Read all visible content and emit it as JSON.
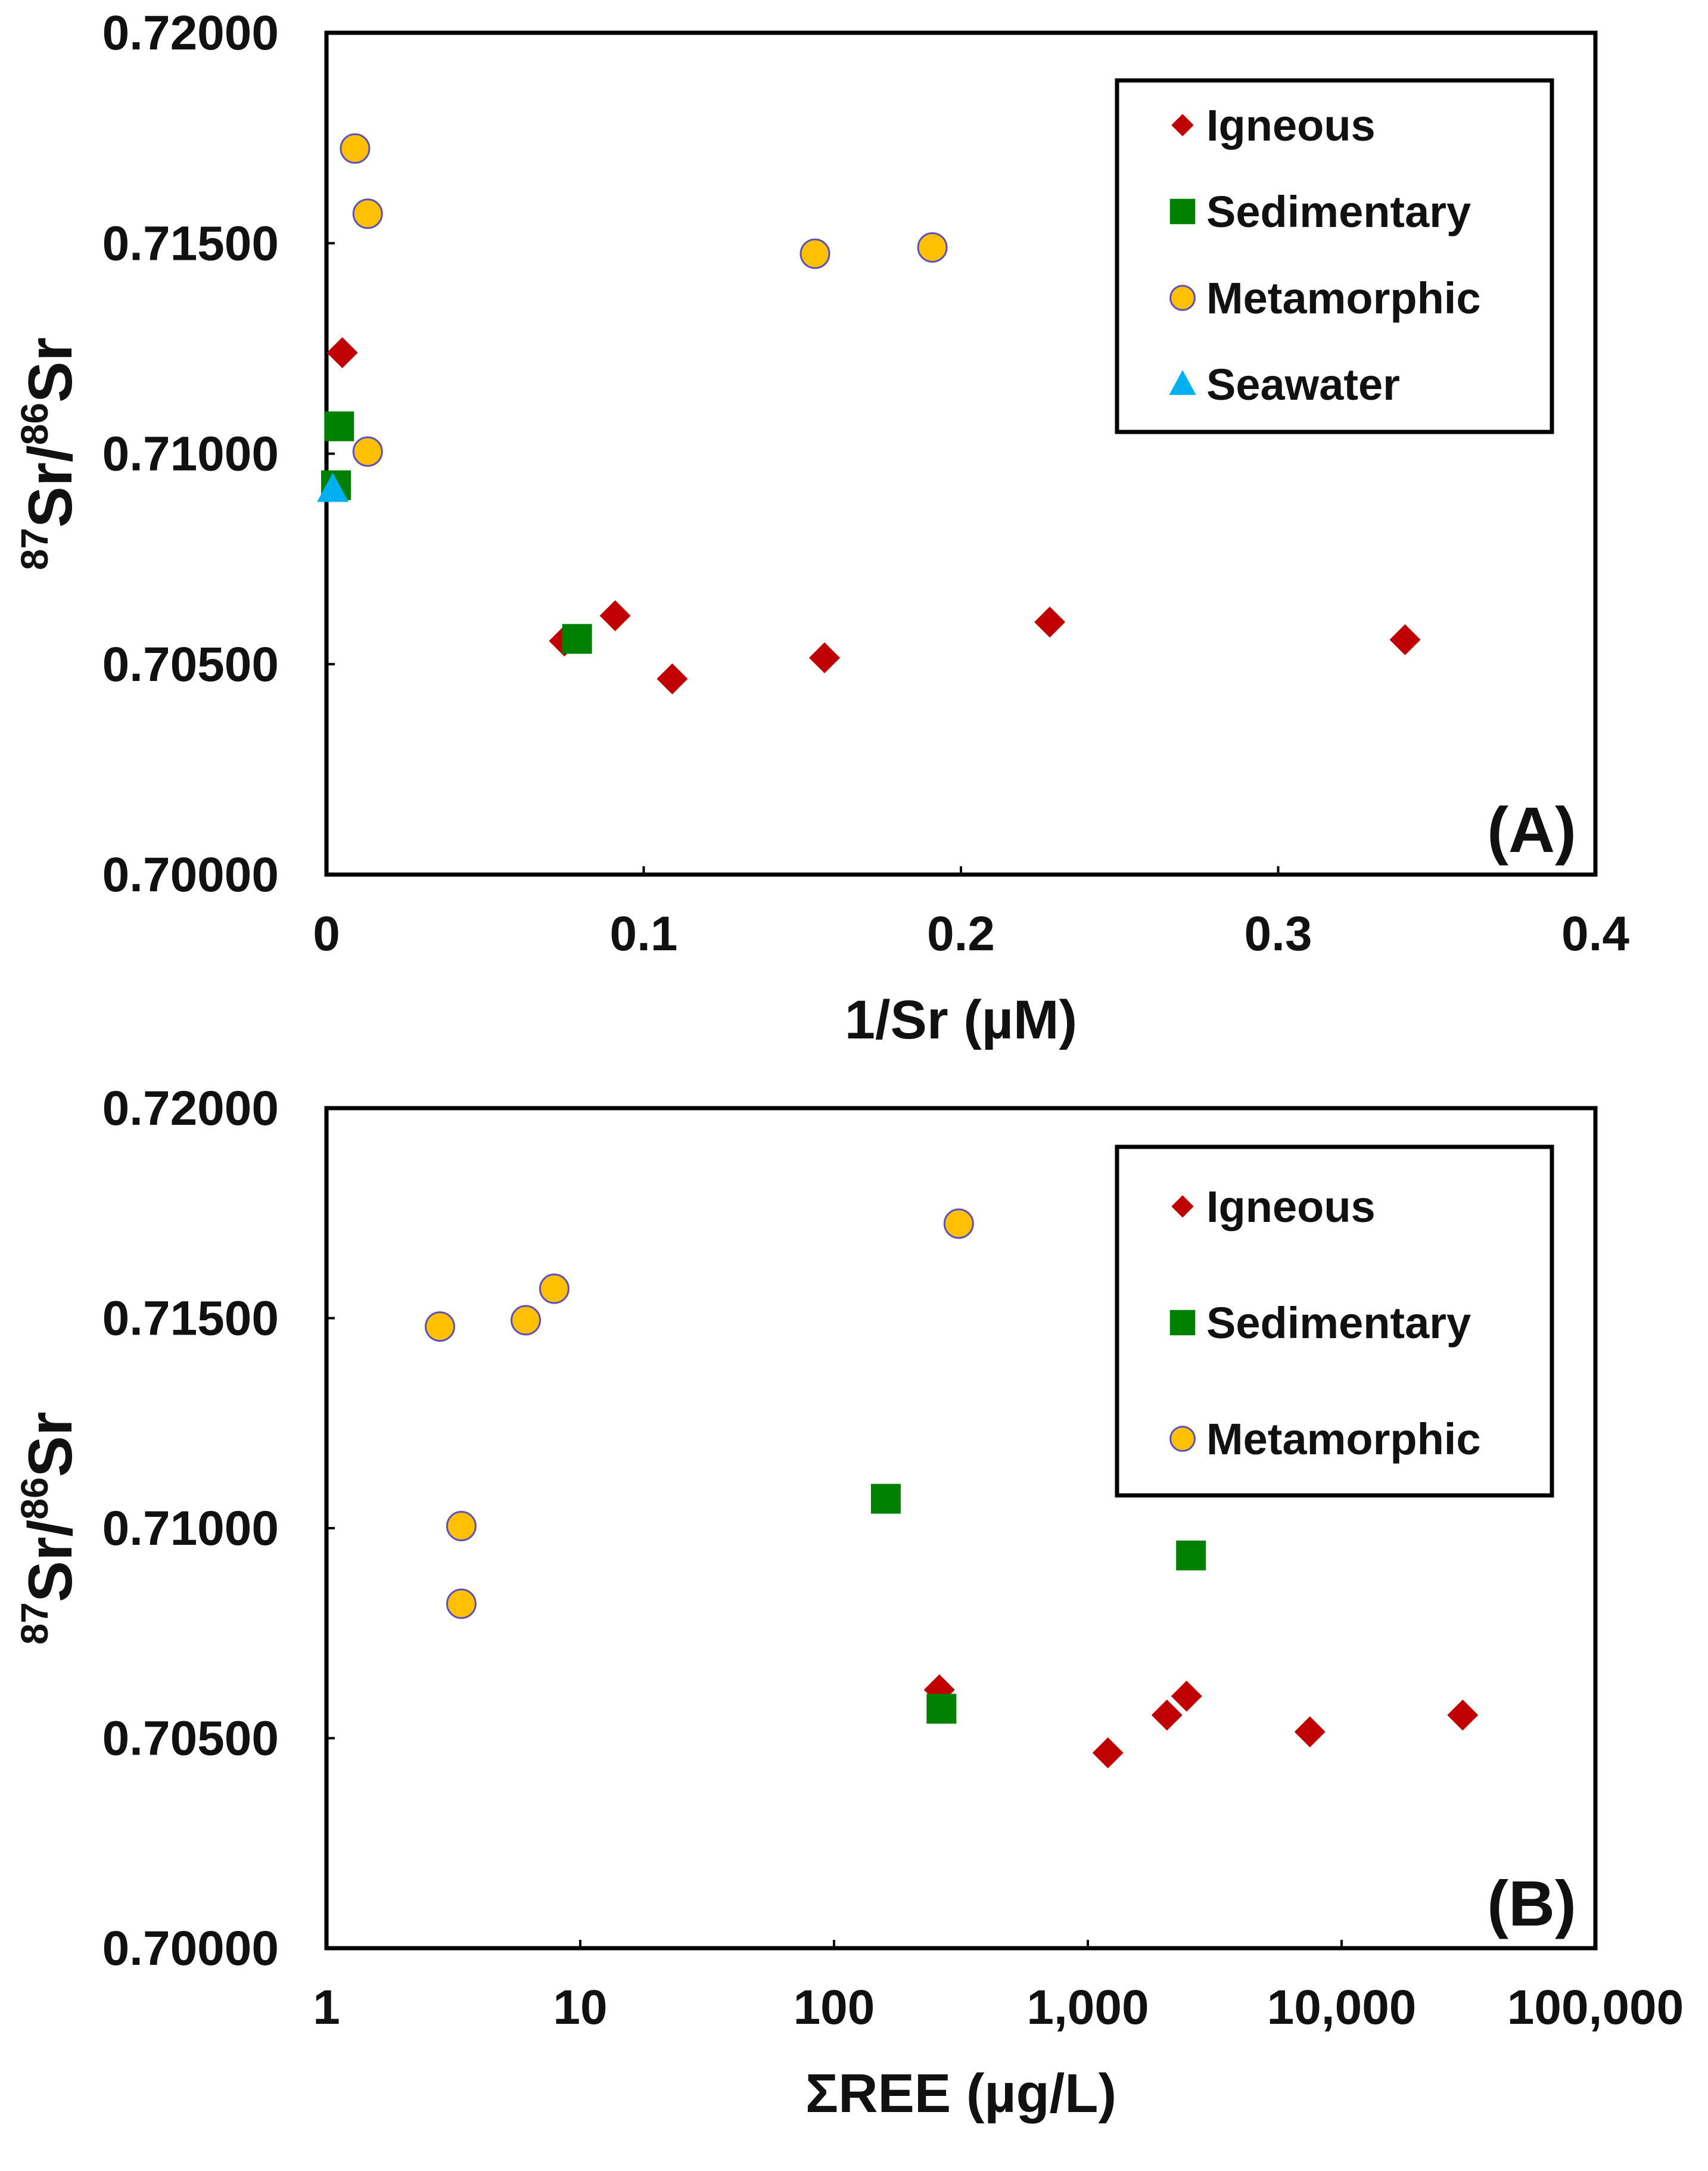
{
  "chart_data": [
    {
      "type": "scatter",
      "panel_label": "(A)",
      "xlabel": "1/Sr (µM)",
      "ylabel": {
        "prefix_sup": "87",
        "base1": "Sr/",
        "mid_sup": "86",
        "base2": "Sr"
      },
      "xscale": "linear",
      "xlim": [
        0,
        0.4
      ],
      "ylim": [
        0.7,
        0.72
      ],
      "xticks": [
        0,
        0.1,
        0.2,
        0.3,
        0.4
      ],
      "xtick_labels": [
        "0",
        "0.1",
        "0.2",
        "0.3",
        "0.4"
      ],
      "yticks": [
        0.7,
        0.705,
        0.71,
        0.715,
        0.72
      ],
      "ytick_labels": [
        "0.70000",
        "0.70500",
        "0.71000",
        "0.71500",
        "0.72000"
      ],
      "legend_position": "top-right",
      "series": [
        {
          "name": "Igneous",
          "marker": "diamond",
          "color": "#C00000",
          "points": [
            [
              0.005,
              0.7124
            ],
            [
              0.075,
              0.70555
            ],
            [
              0.091,
              0.70615
            ],
            [
              0.109,
              0.70465
            ],
            [
              0.157,
              0.70515
            ],
            [
              0.228,
              0.706
            ],
            [
              0.34,
              0.70558
            ]
          ]
        },
        {
          "name": "Sedimentary",
          "marker": "square",
          "color": "#008000",
          "points": [
            [
              0.004,
              0.71065
            ],
            [
              0.003,
              0.70925
            ],
            [
              0.079,
              0.7056
            ]
          ]
        },
        {
          "name": "Metamorphic",
          "marker": "circle",
          "color": "#FFC000",
          "edge_color": "#5B4FBF",
          "points": [
            [
              0.009,
              0.71725
            ],
            [
              0.013,
              0.7157
            ],
            [
              0.154,
              0.71475
            ],
            [
              0.191,
              0.7149
            ],
            [
              0.013,
              0.71005
            ]
          ]
        },
        {
          "name": "Seawater",
          "marker": "triangle",
          "color": "#00B0F0",
          "points": [
            [
              0.002,
              0.70915
            ]
          ]
        }
      ]
    },
    {
      "type": "scatter",
      "panel_label": "(B)",
      "xlabel": "ΣREE (µg/L)",
      "ylabel": {
        "prefix_sup": "87",
        "base1": "Sr/",
        "mid_sup": "86",
        "base2": "Sr"
      },
      "xscale": "log",
      "xlim": [
        1,
        100000
      ],
      "ylim": [
        0.7,
        0.72
      ],
      "xticks": [
        1,
        10,
        100,
        1000,
        10000,
        100000
      ],
      "xtick_labels": [
        "1",
        "10",
        "100",
        "1,000",
        "10,000",
        "100,000"
      ],
      "yticks": [
        0.7,
        0.705,
        0.71,
        0.715,
        0.72
      ],
      "ytick_labels": [
        "0.70000",
        "0.70500",
        "0.71000",
        "0.71500",
        "0.72000"
      ],
      "legend_position": "top-right",
      "series": [
        {
          "name": "Igneous",
          "marker": "diamond",
          "color": "#C00000",
          "points": [
            [
              260,
              0.70615
            ],
            [
              1200,
              0.70465
            ],
            [
              2050,
              0.70555
            ],
            [
              2450,
              0.706
            ],
            [
              7500,
              0.70515
            ],
            [
              30000,
              0.70555
            ]
          ]
        },
        {
          "name": "Sedimentary",
          "marker": "square",
          "color": "#008000",
          "points": [
            [
              160,
              0.7107
            ],
            [
              2550,
              0.70935
            ],
            [
              265,
              0.7057
            ]
          ]
        },
        {
          "name": "Metamorphic",
          "marker": "circle",
          "color": "#FFC000",
          "edge_color": "#5B4FBF",
          "points": [
            [
              2.8,
              0.7148
            ],
            [
              6.1,
              0.71495
            ],
            [
              7.9,
              0.7157
            ],
            [
              310,
              0.71725
            ],
            [
              3.4,
              0.71005
            ],
            [
              3.4,
              0.7082
            ]
          ]
        }
      ]
    }
  ]
}
